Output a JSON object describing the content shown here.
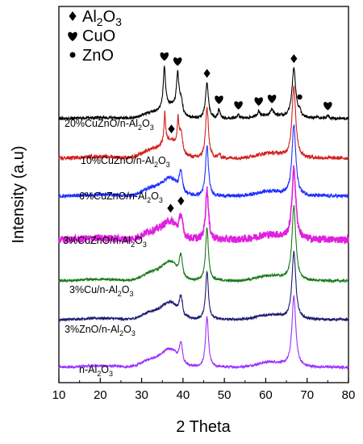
{
  "chart_data": {
    "type": "line",
    "xlabel": "2 Theta",
    "ylabel": "Intensity (a.u)",
    "xlim": [
      10,
      80
    ],
    "xticks": [
      "10",
      "20",
      "30",
      "40",
      "50",
      "60",
      "70",
      "80"
    ],
    "y_ticks_shown": false,
    "grid": false,
    "legend_position": "top-left",
    "legend": [
      {
        "marker": "diamond",
        "label_main": "Al",
        "label_sub1": "2",
        "label_mid": "O",
        "label_sub2": "3"
      },
      {
        "marker": "heart",
        "label_main": "CuO",
        "label_sub1": "",
        "label_mid": "",
        "label_sub2": ""
      },
      {
        "marker": "circle",
        "label_main": "ZnO",
        "label_sub1": "",
        "label_mid": "",
        "label_sub2": ""
      }
    ],
    "series": [
      {
        "name_main": "n-Al",
        "name_sub1": "2",
        "name_mid": "O",
        "name_sub2": "3",
        "color": "#9b30ff",
        "baseline": 0,
        "peak_scale": 1.0,
        "cuo": false,
        "noise": 0.01
      },
      {
        "name_main": "3%ZnO/n-Al",
        "name_sub1": "2",
        "name_mid": "O",
        "name_sub2": "3",
        "color": "#191970",
        "baseline": 1,
        "peak_scale": 0.95,
        "cuo": false,
        "noise": 0.01
      },
      {
        "name_main": "3%Cu/n-Al",
        "name_sub1": "2",
        "name_mid": "O",
        "name_sub2": "3",
        "color": "#1a7a1a",
        "baseline": 2,
        "peak_scale": 1.05,
        "cuo": false,
        "noise": 0.01
      },
      {
        "name_main": "3%CuZnO/n-Al",
        "name_sub1": "2",
        "name_mid": "O",
        "name_sub2": "3",
        "color": "#e020e0",
        "baseline": 3,
        "peak_scale": 1.0,
        "cuo": false,
        "noise": 0.03
      },
      {
        "name_main": "6%CuZnO/n-Al",
        "name_sub1": "2",
        "name_mid": "O",
        "name_sub2": "3",
        "color": "#1f2fff",
        "baseline": 4,
        "peak_scale": 1.0,
        "cuo": false,
        "noise": 0.015
      },
      {
        "name_main": "10%CuZnO/n-Al",
        "name_sub1": "2",
        "name_mid": "O",
        "name_sub2": "3",
        "color": "#d42020",
        "baseline": 5,
        "peak_scale": 1.0,
        "cuo": "medium",
        "noise": 0.015
      },
      {
        "name_main": "20%CuZnO/n-Al",
        "name_sub1": "2",
        "name_mid": "O",
        "name_sub2": "3",
        "color": "#000000",
        "baseline": 6,
        "peak_scale": 0.7,
        "cuo": "strong",
        "noise": 0.012
      }
    ],
    "annotations": [
      {
        "marker": "heart",
        "two_theta": 35.5,
        "series": "20%CuZnO/n-Al2O3"
      },
      {
        "marker": "heart",
        "two_theta": 38.7,
        "series": "20%CuZnO/n-Al2O3"
      },
      {
        "marker": "diamond",
        "two_theta": 45.8,
        "series": "20%CuZnO/n-Al2O3"
      },
      {
        "marker": "heart",
        "two_theta": 48.7,
        "series": "20%CuZnO/n-Al2O3"
      },
      {
        "marker": "heart",
        "two_theta": 53.4,
        "series": "20%CuZnO/n-Al2O3"
      },
      {
        "marker": "heart",
        "two_theta": 58.3,
        "series": "20%CuZnO/n-Al2O3"
      },
      {
        "marker": "heart",
        "two_theta": 61.5,
        "series": "20%CuZnO/n-Al2O3"
      },
      {
        "marker": "diamond",
        "two_theta": 66.8,
        "series": "20%CuZnO/n-Al2O3"
      },
      {
        "marker": "circle",
        "two_theta": 68.2,
        "series": "20%CuZnO/n-Al2O3"
      },
      {
        "marker": "heart",
        "two_theta": 75.0,
        "series": "20%CuZnO/n-Al2O3"
      },
      {
        "marker": "diamond",
        "two_theta": 37.2,
        "series": "10%CuZnO/n-Al2O3"
      },
      {
        "marker": "diamond",
        "two_theta": 37.0,
        "series": "3%CuZnO/n-Al2O3"
      },
      {
        "marker": "diamond",
        "two_theta": 39.5,
        "series": "3%CuZnO/n-Al2O3"
      }
    ]
  }
}
